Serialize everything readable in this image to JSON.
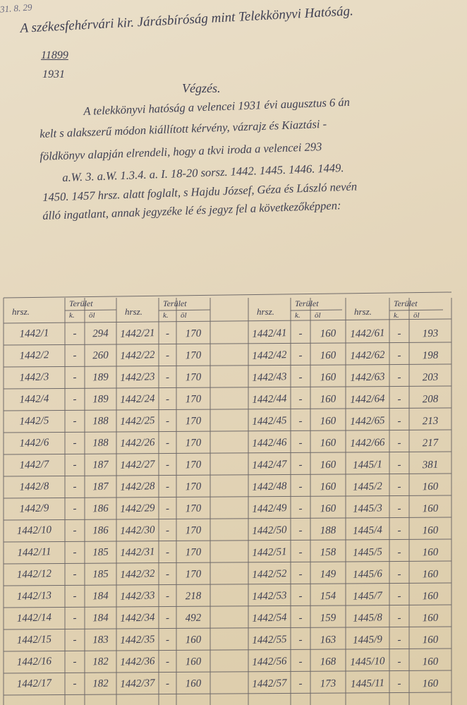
{
  "corner_note": "31. 8. 29",
  "header": {
    "authority": "A székesfehérvári kir. Járásbíróság mint Telekkönyvi Hatóság.",
    "case_number": "11899",
    "year": "1931"
  },
  "title": "Végzés.",
  "body_lines": [
    "A telekkönyvi hatóság a velencei 1931 évi augusztus 6 án",
    "kelt s alakszerű módon kiállított kérvény, vázrajz és Kiaztási -",
    "földkönyv alapján elrendeli, hogy a tkvi iroda a velencei 293",
    "a.W. 3. a.W. 1.3.4. a. I. 18-20 sorsz. 1442. 1445. 1446. 1449.",
    "1450. 1457 hrsz. alatt foglalt, s Hajdu József, Géza és László nevén",
    "álló ingatlant, annak jegyzéke lé és jegyz fel a következőképpen:"
  ],
  "table": {
    "column_groups": [
      {
        "hrsz": "hrsz.",
        "area": "Terület",
        "k": "k.",
        "ol": "öl"
      },
      {
        "hrsz": "hrsz.",
        "area": "Terület",
        "k": "k.",
        "ol": "öl"
      },
      {
        "hrsz": "hrsz.",
        "area": "Terület",
        "k": "k.",
        "ol": "öl"
      },
      {
        "hrsz": "hrsz.",
        "area": "Terület",
        "k": "k.",
        "ol": "öl"
      }
    ],
    "rows": [
      [
        "1442/1",
        "-",
        "294",
        "1442/21",
        "-",
        "170",
        "1442/41",
        "-",
        "160",
        "1442/61",
        "-",
        "193"
      ],
      [
        "1442/2",
        "-",
        "260",
        "1442/22",
        "-",
        "170",
        "1442/42",
        "-",
        "160",
        "1442/62",
        "-",
        "198"
      ],
      [
        "1442/3",
        "-",
        "189",
        "1442/23",
        "-",
        "170",
        "1442/43",
        "-",
        "160",
        "1442/63",
        "-",
        "203"
      ],
      [
        "1442/4",
        "-",
        "189",
        "1442/24",
        "-",
        "170",
        "1442/44",
        "-",
        "160",
        "1442/64",
        "-",
        "208"
      ],
      [
        "1442/5",
        "-",
        "188",
        "1442/25",
        "-",
        "170",
        "1442/45",
        "-",
        "160",
        "1442/65",
        "-",
        "213"
      ],
      [
        "1442/6",
        "-",
        "188",
        "1442/26",
        "-",
        "170",
        "1442/46",
        "-",
        "160",
        "1442/66",
        "-",
        "217"
      ],
      [
        "1442/7",
        "-",
        "187",
        "1442/27",
        "-",
        "170",
        "1442/47",
        "-",
        "160",
        "1445/1",
        "-",
        "381"
      ],
      [
        "1442/8",
        "-",
        "187",
        "1442/28",
        "-",
        "170",
        "1442/48",
        "-",
        "160",
        "1445/2",
        "-",
        "160"
      ],
      [
        "1442/9",
        "-",
        "186",
        "1442/29",
        "-",
        "170",
        "1442/49",
        "-",
        "160",
        "1445/3",
        "-",
        "160"
      ],
      [
        "1442/10",
        "-",
        "186",
        "1442/30",
        "-",
        "170",
        "1442/50",
        "-",
        "188",
        "1445/4",
        "-",
        "160"
      ],
      [
        "1442/11",
        "-",
        "185",
        "1442/31",
        "-",
        "170",
        "1442/51",
        "-",
        "158",
        "1445/5",
        "-",
        "160"
      ],
      [
        "1442/12",
        "-",
        "185",
        "1442/32",
        "-",
        "170",
        "1442/52",
        "-",
        "149",
        "1445/6",
        "-",
        "160"
      ],
      [
        "1442/13",
        "-",
        "184",
        "1442/33",
        "-",
        "218",
        "1442/53",
        "-",
        "154",
        "1445/7",
        "-",
        "160"
      ],
      [
        "1442/14",
        "-",
        "184",
        "1442/34",
        "-",
        "492",
        "1442/54",
        "-",
        "159",
        "1445/8",
        "-",
        "160"
      ],
      [
        "1442/15",
        "-",
        "183",
        "1442/35",
        "-",
        "160",
        "1442/55",
        "-",
        "163",
        "1445/9",
        "-",
        "160"
      ],
      [
        "1442/16",
        "-",
        "182",
        "1442/36",
        "-",
        "160",
        "1442/56",
        "-",
        "168",
        "1445/10",
        "-",
        "160"
      ],
      [
        "1442/17",
        "-",
        "182",
        "1442/37",
        "-",
        "160",
        "1442/57",
        "-",
        "173",
        "1445/11",
        "-",
        "160"
      ]
    ]
  }
}
